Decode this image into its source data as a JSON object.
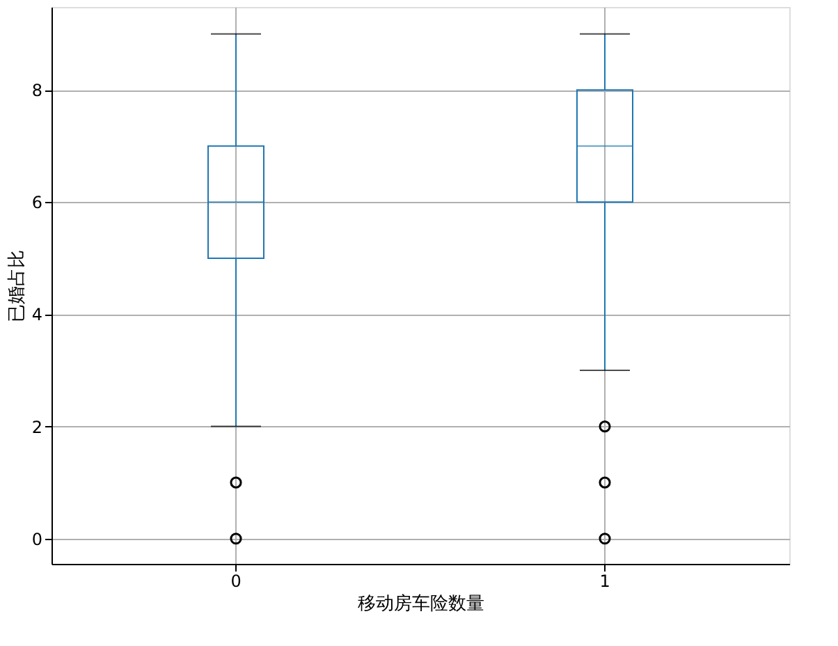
{
  "chart_data": {
    "type": "box",
    "xlabel": "移动房车险数量",
    "ylabel": "已婚占比",
    "categories": [
      "0",
      "1"
    ],
    "series": [
      {
        "color": "#1f77b4",
        "boxes": [
          {
            "low": 2,
            "q1": 5,
            "median": 6,
            "q3": 7,
            "high": 9,
            "outliers": [
              0,
              1
            ]
          },
          {
            "low": 3,
            "q1": 6,
            "median": 7,
            "q3": 8,
            "high": 9,
            "outliers": [
              0,
              1,
              2
            ]
          }
        ]
      }
    ],
    "ylim": [
      -0.45,
      9.48
    ],
    "yticks": [
      0,
      2,
      4,
      6,
      8
    ],
    "grid": true,
    "marker": "circle"
  }
}
